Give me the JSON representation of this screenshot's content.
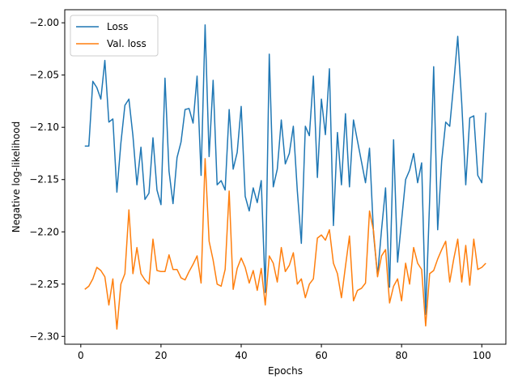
{
  "chart_data": {
    "type": "line",
    "title": "",
    "xlabel": "Epochs",
    "ylabel": "Negative log-likelihood",
    "xlim": [
      -4,
      106
    ],
    "ylim": [
      -2.3075,
      -1.9875
    ],
    "xticks": [
      0,
      20,
      40,
      60,
      80,
      100
    ],
    "yticks": [
      -2.3,
      -2.25,
      -2.2,
      -2.15,
      -2.1,
      -2.05,
      -2.0
    ],
    "xtick_labels": [
      "0",
      "20",
      "40",
      "60",
      "80",
      "100"
    ],
    "ytick_labels": [
      "−2.30",
      "−2.25",
      "−2.20",
      "−2.15",
      "−2.10",
      "−2.05",
      "−2.00"
    ],
    "grid": false,
    "legend_position": "top-left",
    "series": [
      {
        "name": "Loss",
        "color": "#1f77b4",
        "x": [
          1,
          2,
          3,
          4,
          5,
          6,
          7,
          8,
          9,
          10,
          11,
          12,
          13,
          14,
          15,
          16,
          17,
          18,
          19,
          20,
          21,
          22,
          23,
          24,
          25,
          26,
          27,
          28,
          29,
          30,
          31,
          32,
          33,
          34,
          35,
          36,
          37,
          38,
          39,
          40,
          41,
          42,
          43,
          44,
          45,
          46,
          47,
          48,
          49,
          50,
          51,
          52,
          53,
          54,
          55,
          56,
          57,
          58,
          59,
          60,
          61,
          62,
          63,
          64,
          65,
          66,
          67,
          68,
          69,
          70,
          71,
          72,
          73,
          74,
          75,
          76,
          77,
          78,
          79,
          80,
          81,
          82,
          83,
          84,
          85,
          86,
          87,
          88,
          89,
          90,
          91,
          92,
          93,
          94,
          95,
          96,
          97,
          98,
          99,
          100,
          101
        ],
        "values": [
          -2.118,
          -2.118,
          -2.056,
          -2.062,
          -2.073,
          -2.036,
          -2.095,
          -2.092,
          -2.162,
          -2.115,
          -2.079,
          -2.073,
          -2.108,
          -2.155,
          -2.119,
          -2.169,
          -2.163,
          -2.11,
          -2.16,
          -2.174,
          -2.053,
          -2.142,
          -2.173,
          -2.129,
          -2.114,
          -2.083,
          -2.082,
          -2.096,
          -2.051,
          -2.146,
          -2.002,
          -2.128,
          -2.055,
          -2.155,
          -2.151,
          -2.16,
          -2.083,
          -2.14,
          -2.124,
          -2.08,
          -2.166,
          -2.18,
          -2.158,
          -2.172,
          -2.151,
          -2.258,
          -2.03,
          -2.157,
          -2.14,
          -2.093,
          -2.135,
          -2.125,
          -2.099,
          -2.161,
          -2.211,
          -2.099,
          -2.108,
          -2.051,
          -2.148,
          -2.073,
          -2.107,
          -2.044,
          -2.194,
          -2.105,
          -2.155,
          -2.087,
          -2.157,
          -2.093,
          -2.113,
          -2.133,
          -2.153,
          -2.12,
          -2.202,
          -2.242,
          -2.198,
          -2.158,
          -2.253,
          -2.112,
          -2.229,
          -2.189,
          -2.15,
          -2.141,
          -2.125,
          -2.153,
          -2.134,
          -2.279,
          -2.169,
          -2.042,
          -2.198,
          -2.132,
          -2.095,
          -2.099,
          -2.058,
          -2.013,
          -2.077,
          -2.155,
          -2.091,
          -2.089,
          -2.146,
          -2.153,
          -2.086
        ]
      },
      {
        "name": "Val. loss",
        "color": "#ff7f0e",
        "x": [
          1,
          2,
          3,
          4,
          5,
          6,
          7,
          8,
          9,
          10,
          11,
          12,
          13,
          14,
          15,
          16,
          17,
          18,
          19,
          20,
          21,
          22,
          23,
          24,
          25,
          26,
          27,
          28,
          29,
          30,
          31,
          32,
          33,
          34,
          35,
          36,
          37,
          38,
          39,
          40,
          41,
          42,
          43,
          44,
          45,
          46,
          47,
          48,
          49,
          50,
          51,
          52,
          53,
          54,
          55,
          56,
          57,
          58,
          59,
          60,
          61,
          62,
          63,
          64,
          65,
          66,
          67,
          68,
          69,
          70,
          71,
          72,
          73,
          74,
          75,
          76,
          77,
          78,
          79,
          80,
          81,
          82,
          83,
          84,
          85,
          86,
          87,
          88,
          89,
          90,
          91,
          92,
          93,
          94,
          95,
          96,
          97,
          98,
          99,
          100,
          101
        ],
        "values": [
          -2.255,
          -2.252,
          -2.245,
          -2.234,
          -2.237,
          -2.243,
          -2.27,
          -2.245,
          -2.293,
          -2.25,
          -2.24,
          -2.179,
          -2.24,
          -2.215,
          -2.24,
          -2.246,
          -2.25,
          -2.207,
          -2.237,
          -2.238,
          -2.238,
          -2.222,
          -2.236,
          -2.236,
          -2.244,
          -2.246,
          -2.238,
          -2.231,
          -2.223,
          -2.249,
          -2.13,
          -2.209,
          -2.227,
          -2.25,
          -2.252,
          -2.236,
          -2.161,
          -2.255,
          -2.235,
          -2.225,
          -2.234,
          -2.249,
          -2.237,
          -2.256,
          -2.235,
          -2.27,
          -2.223,
          -2.23,
          -2.248,
          -2.215,
          -2.238,
          -2.232,
          -2.22,
          -2.25,
          -2.245,
          -2.263,
          -2.25,
          -2.245,
          -2.206,
          -2.203,
          -2.208,
          -2.198,
          -2.23,
          -2.24,
          -2.263,
          -2.233,
          -2.204,
          -2.266,
          -2.256,
          -2.254,
          -2.249,
          -2.18,
          -2.199,
          -2.243,
          -2.223,
          -2.217,
          -2.268,
          -2.252,
          -2.245,
          -2.266,
          -2.23,
          -2.25,
          -2.215,
          -2.23,
          -2.236,
          -2.29,
          -2.24,
          -2.237,
          -2.226,
          -2.217,
          -2.209,
          -2.248,
          -2.226,
          -2.207,
          -2.248,
          -2.213,
          -2.251,
          -2.207,
          -2.236,
          -2.234,
          -2.23
        ]
      }
    ]
  }
}
